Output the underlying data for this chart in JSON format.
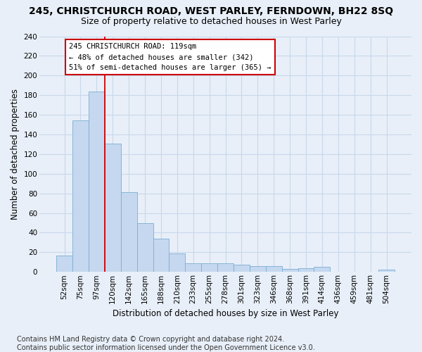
{
  "title": "245, CHRISTCHURCH ROAD, WEST PARLEY, FERNDOWN, BH22 8SQ",
  "subtitle": "Size of property relative to detached houses in West Parley",
  "xlabel": "Distribution of detached houses by size in West Parley",
  "ylabel": "Number of detached properties",
  "categories": [
    "52sqm",
    "75sqm",
    "97sqm",
    "120sqm",
    "142sqm",
    "165sqm",
    "188sqm",
    "210sqm",
    "233sqm",
    "255sqm",
    "278sqm",
    "301sqm",
    "323sqm",
    "346sqm",
    "368sqm",
    "391sqm",
    "414sqm",
    "436sqm",
    "459sqm",
    "481sqm",
    "504sqm"
  ],
  "values": [
    17,
    154,
    184,
    131,
    81,
    50,
    34,
    19,
    9,
    9,
    9,
    7,
    6,
    6,
    3,
    4,
    5,
    0,
    0,
    0,
    2
  ],
  "bar_color": "#c5d8ef",
  "bar_edge_color": "#7badd4",
  "grid_color": "#c8d8ec",
  "vline_x_index": 2.5,
  "vline_color": "#cc0000",
  "annotation_text": "245 CHRISTCHURCH ROAD: 119sqm\n← 48% of detached houses are smaller (342)\n51% of semi-detached houses are larger (365) →",
  "annotation_box_color": "#ffffff",
  "annotation_box_edge": "#cc0000",
  "ylim": [
    0,
    240
  ],
  "yticks": [
    0,
    20,
    40,
    60,
    80,
    100,
    120,
    140,
    160,
    180,
    200,
    220,
    240
  ],
  "footer": "Contains HM Land Registry data © Crown copyright and database right 2024.\nContains public sector information licensed under the Open Government Licence v3.0.",
  "bg_color": "#e8eff8",
  "title_fontsize": 10,
  "subtitle_fontsize": 9,
  "axis_label_fontsize": 8.5,
  "tick_fontsize": 7.5,
  "footer_fontsize": 7
}
